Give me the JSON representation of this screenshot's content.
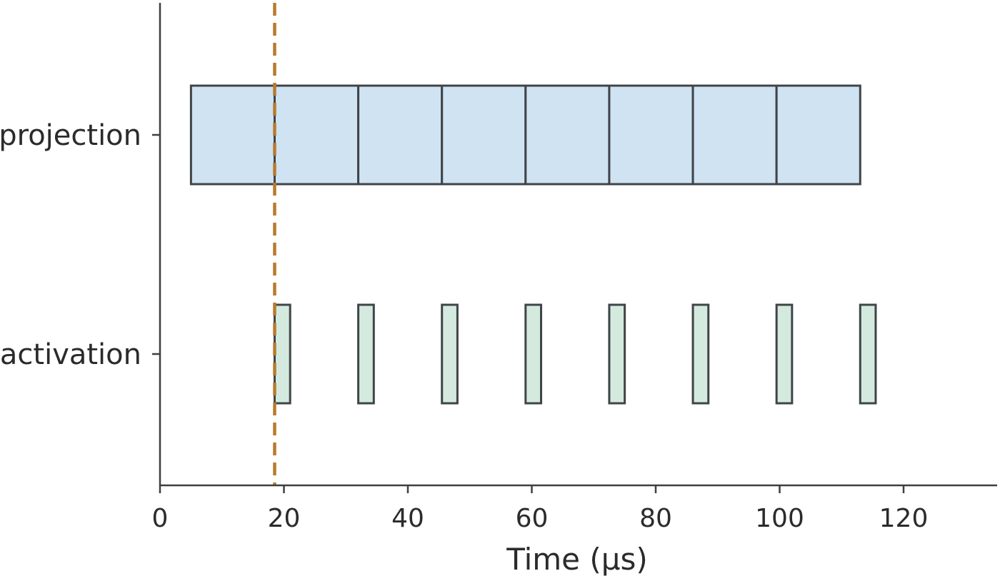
{
  "chart_data": {
    "type": "timeline",
    "xlabel": "Time (μs)",
    "xlim": [
      0,
      135
    ],
    "xticks": [
      0,
      20,
      40,
      60,
      80,
      100,
      120
    ],
    "categories": [
      "projection",
      "activation"
    ],
    "series": [
      {
        "category": "projection",
        "color": "#cfe3f3",
        "edge_color": "#404448",
        "segments": [
          [
            5.0,
            18.5
          ],
          [
            18.5,
            32.0
          ],
          [
            32.0,
            45.5
          ],
          [
            45.5,
            59.0
          ],
          [
            59.0,
            72.5
          ],
          [
            72.5,
            86.0
          ],
          [
            86.0,
            99.5
          ],
          [
            99.5,
            113.0
          ]
        ]
      },
      {
        "category": "activation",
        "color": "#d4eadf",
        "edge_color": "#404448",
        "segments": [
          [
            18.5,
            21.0
          ],
          [
            32.0,
            34.5
          ],
          [
            45.5,
            48.0
          ],
          [
            59.0,
            61.5
          ],
          [
            72.5,
            75.0
          ],
          [
            86.0,
            88.5
          ],
          [
            99.5,
            102.0
          ],
          [
            113.0,
            115.5
          ]
        ]
      }
    ],
    "annotations": [
      {
        "type": "vline",
        "x": 18.5,
        "style": "dashed",
        "color": "#b87a2e"
      }
    ],
    "grid": false,
    "legend": "none"
  }
}
